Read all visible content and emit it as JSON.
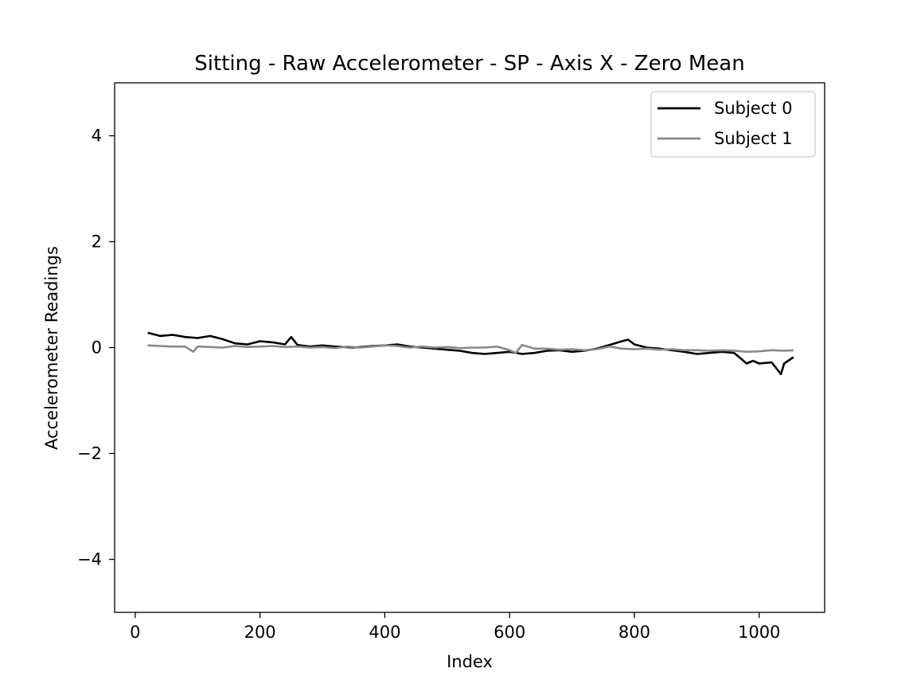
{
  "chart_data": {
    "type": "line",
    "title": "Sitting - Raw Accelerometer - SP - Axis X - Zero Mean",
    "xlabel": "Index",
    "ylabel": "Accelerometer Readings",
    "xlim": [
      -33,
      1105
    ],
    "ylim": [
      -5,
      5
    ],
    "xticks": [
      0,
      200,
      400,
      600,
      800,
      1000
    ],
    "yticks": [
      -4,
      -2,
      0,
      2,
      4
    ],
    "xtick_labels": [
      "0",
      "200",
      "400",
      "600",
      "800",
      "1000"
    ],
    "ytick_labels": [
      "−4",
      "−2",
      "0",
      "2",
      "4"
    ],
    "grid": false,
    "legend_position": "top-right",
    "series": [
      {
        "name": "Subject 0",
        "color": "#000000",
        "x": [
          20,
          30,
          40,
          60,
          80,
          100,
          120,
          140,
          160,
          180,
          200,
          220,
          240,
          250,
          260,
          280,
          300,
          320,
          350,
          380,
          400,
          420,
          440,
          460,
          480,
          500,
          520,
          540,
          560,
          580,
          600,
          620,
          640,
          660,
          680,
          700,
          720,
          740,
          760,
          780,
          790,
          800,
          820,
          840,
          860,
          880,
          900,
          920,
          940,
          960,
          980,
          990,
          1000,
          1020,
          1035,
          1040,
          1055
        ],
        "y": [
          0.28,
          0.25,
          0.22,
          0.24,
          0.2,
          0.18,
          0.22,
          0.16,
          0.08,
          0.06,
          0.12,
          0.1,
          0.06,
          0.2,
          0.05,
          0.02,
          0.04,
          0.02,
          0.0,
          0.03,
          0.04,
          0.06,
          0.02,
          0.0,
          -0.02,
          -0.04,
          -0.06,
          -0.1,
          -0.12,
          -0.1,
          -0.08,
          -0.12,
          -0.1,
          -0.06,
          -0.05,
          -0.08,
          -0.06,
          -0.02,
          0.05,
          0.12,
          0.15,
          0.06,
          0.0,
          -0.02,
          -0.05,
          -0.08,
          -0.12,
          -0.1,
          -0.08,
          -0.1,
          -0.3,
          -0.25,
          -0.3,
          -0.28,
          -0.5,
          -0.3,
          -0.18
        ]
      },
      {
        "name": "Subject 1",
        "color": "#888888",
        "x": [
          20,
          40,
          60,
          80,
          93,
          100,
          120,
          140,
          160,
          180,
          200,
          220,
          240,
          260,
          280,
          300,
          320,
          340,
          360,
          380,
          400,
          420,
          440,
          460,
          480,
          500,
          520,
          540,
          560,
          580,
          600,
          610,
          620,
          640,
          660,
          680,
          700,
          720,
          740,
          760,
          780,
          800,
          820,
          840,
          860,
          880,
          900,
          920,
          940,
          960,
          980,
          1000,
          1020,
          1040,
          1055
        ],
        "y": [
          0.04,
          0.03,
          0.02,
          0.02,
          -0.08,
          0.02,
          0.01,
          0.0,
          0.03,
          0.01,
          0.02,
          0.03,
          0.01,
          0.02,
          0.0,
          0.01,
          -0.01,
          0.02,
          0.0,
          0.02,
          0.04,
          0.03,
          0.0,
          0.02,
          0.0,
          0.01,
          -0.01,
          0.0,
          0.0,
          0.02,
          -0.05,
          -0.1,
          0.05,
          -0.02,
          -0.02,
          -0.04,
          -0.03,
          -0.05,
          -0.03,
          0.02,
          -0.02,
          -0.03,
          -0.02,
          -0.04,
          -0.03,
          -0.05,
          -0.05,
          -0.06,
          -0.05,
          -0.06,
          -0.08,
          -0.07,
          -0.05,
          -0.06,
          -0.05
        ]
      }
    ]
  }
}
